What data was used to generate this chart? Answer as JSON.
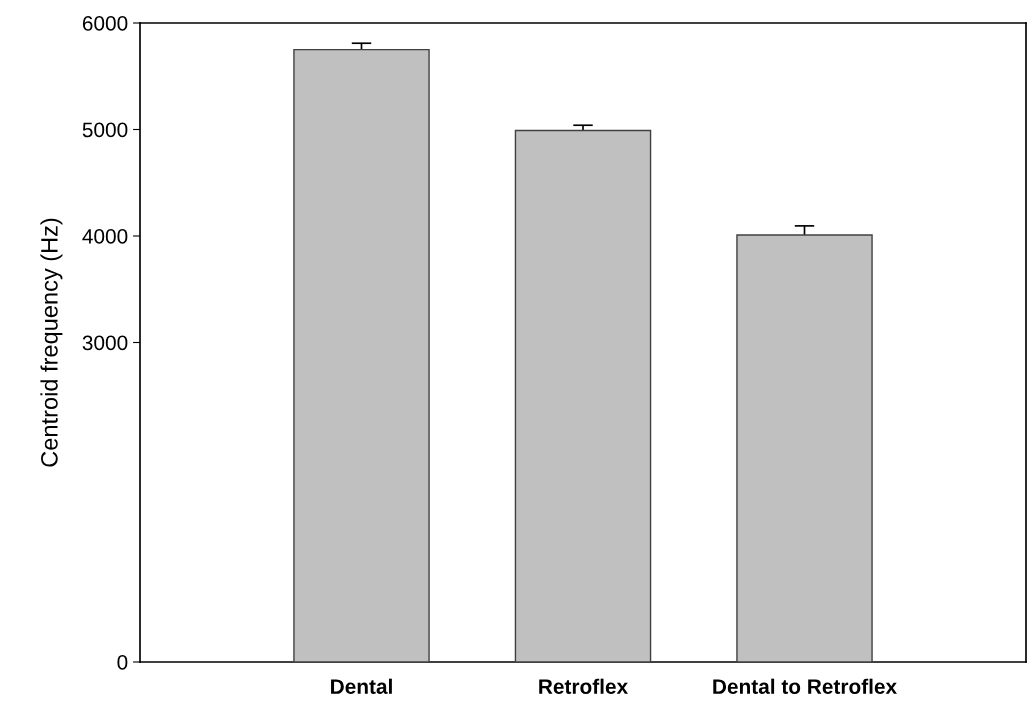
{
  "chart_data": {
    "type": "bar",
    "ylabel": "Centroid frequency (Hz)",
    "categories": [
      "Dental",
      "Retroflex",
      "Dental to Retroflex"
    ],
    "values": [
      5750,
      4990,
      4010
    ],
    "errors": [
      60,
      50,
      85
    ],
    "color": "#c0c0c0",
    "ylim": [
      0,
      6000
    ],
    "yticks": [
      0,
      3000,
      4000,
      5000,
      6000
    ],
    "grid": false,
    "legend": false
  }
}
